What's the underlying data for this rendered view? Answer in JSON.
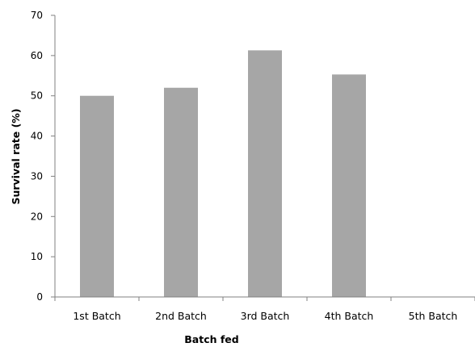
{
  "chart_data": {
    "type": "bar",
    "title": "",
    "xlabel": "Batch fed",
    "ylabel": "Survival rate (%)",
    "categories": [
      "1st Batch",
      "2nd Batch",
      "3rd Batch",
      "4th Batch",
      "5th Batch"
    ],
    "values": [
      50,
      52,
      61.3,
      55.3,
      0
    ],
    "ylim": [
      0,
      70
    ],
    "yticks": [
      "0",
      "10",
      "20",
      "30",
      "40",
      "50",
      "60",
      "70"
    ],
    "grid": false,
    "legend": "none",
    "bar_color": "#a6a6a6",
    "axis_color": "#808080"
  }
}
